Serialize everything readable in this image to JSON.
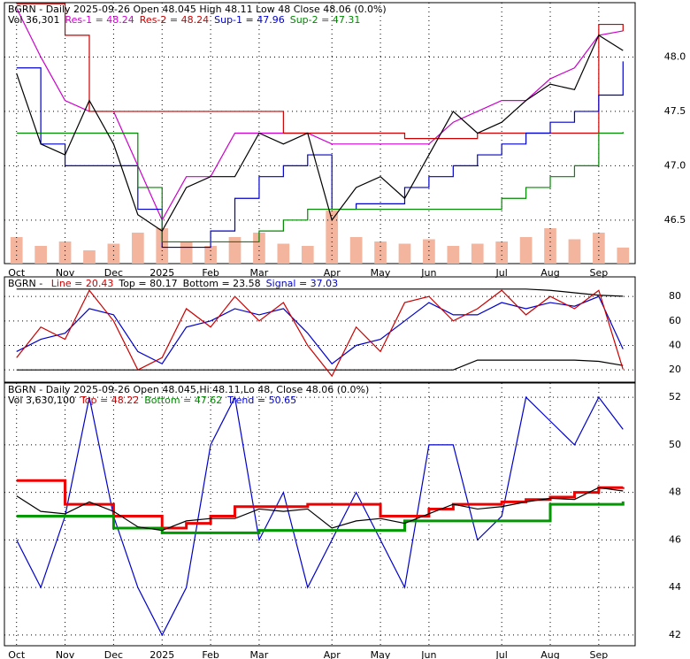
{
  "chart_data": [
    {
      "type": "line",
      "header": [
        [
          {
            "text": "BGRN - Daily 2025-09-26 Open 48.045  High 48.11  Low 48  Close 48.06 (0.0%)",
            "color": "#000000"
          }
        ],
        [
          {
            "text": "Vol 36,301",
            "color": "#000000"
          },
          {
            "text": "Res-1 = 48.24",
            "color": "#cc00cc"
          },
          {
            "text": "Res-2 = 48.24",
            "color": "#cc0000"
          },
          {
            "text": "Sup-1 = 47.96",
            "color": "#0000cc"
          },
          {
            "text": "Sup-2 = 47.31",
            "color": "#008800"
          }
        ]
      ],
      "categories": [
        "Oct",
        null,
        "Nov",
        null,
        "Dec",
        null,
        "2025",
        null,
        "Feb",
        null,
        "Mar",
        null,
        null,
        "Apr",
        null,
        "May",
        null,
        "Jun",
        null,
        null,
        "Jul",
        null,
        "Aug",
        null,
        "Sep",
        null
      ],
      "ylim": [
        46.1,
        48.5
      ],
      "yticks": [
        46.5,
        {
          "value": 47,
          "label": "47.0"
        },
        47.5,
        {
          "value": 48,
          "label": "48.0"
        }
      ],
      "grid": true,
      "volume": {
        "color": "#f4b59e",
        "values": [
          60000,
          40000,
          50000,
          30000,
          45000,
          70000,
          80000,
          50000,
          40000,
          60000,
          70000,
          45000,
          40000,
          120000,
          60000,
          50000,
          45000,
          55000,
          40000,
          45000,
          50000,
          60000,
          80000,
          55000,
          70000,
          36301
        ]
      },
      "series": [
        {
          "color": "#cc00cc",
          "values": [
            48.45,
            48.0,
            47.6,
            47.5,
            47.5,
            47.0,
            46.5,
            46.9,
            46.9,
            47.3,
            47.3,
            47.3,
            47.3,
            47.2,
            47.2,
            47.2,
            47.2,
            47.2,
            47.4,
            47.5,
            47.6,
            47.6,
            47.8,
            47.9,
            48.2,
            48.24
          ]
        },
        {
          "color": "#cc0000",
          "step": true,
          "values": [
            48.49,
            48.49,
            48.2,
            47.5,
            47.5,
            47.5,
            47.5,
            47.5,
            47.5,
            47.5,
            47.5,
            47.3,
            47.3,
            47.3,
            47.3,
            47.3,
            47.25,
            47.25,
            47.25,
            47.3,
            47.3,
            47.3,
            47.3,
            47.3,
            48.3,
            48.24
          ]
        },
        {
          "color": "#0000cc",
          "step": true,
          "values": [
            47.9,
            47.2,
            47.0,
            47.0,
            47.0,
            46.6,
            46.25,
            46.25,
            46.4,
            46.7,
            46.9,
            47.0,
            47.1,
            46.6,
            46.65,
            46.65,
            46.8,
            46.9,
            47.0,
            47.1,
            47.2,
            47.3,
            47.4,
            47.5,
            47.65,
            47.96
          ]
        },
        {
          "color": "#008800",
          "step": true,
          "values": [
            47.3,
            47.3,
            47.3,
            47.3,
            47.3,
            46.8,
            46.3,
            46.3,
            46.3,
            46.3,
            46.4,
            46.5,
            46.6,
            46.6,
            46.6,
            46.6,
            46.6,
            46.6,
            46.6,
            46.6,
            46.7,
            46.8,
            46.9,
            47.0,
            47.3,
            47.31
          ]
        },
        {
          "color": "#000000",
          "values": [
            47.85,
            47.2,
            47.1,
            47.6,
            47.2,
            46.55,
            46.4,
            46.8,
            46.9,
            46.9,
            47.3,
            47.2,
            47.3,
            46.5,
            46.8,
            46.9,
            46.7,
            47.1,
            47.5,
            47.3,
            47.4,
            47.6,
            47.75,
            47.7,
            48.2,
            48.06
          ]
        }
      ]
    },
    {
      "type": "line",
      "header": [
        [
          {
            "text": "BGRN - ",
            "color": "#000000"
          },
          {
            "text": "Line = 20.43",
            "color": "#cc0000"
          },
          {
            "text": "Top = 80.17",
            "color": "#000000"
          },
          {
            "text": "Bottom = 23.58",
            "color": "#000000"
          },
          {
            "text": "Signal = 37.03",
            "color": "#0000cc"
          }
        ]
      ],
      "categories": [
        null,
        null,
        null,
        null,
        null,
        null,
        null,
        null,
        null,
        null,
        null,
        null,
        null,
        null,
        null,
        null,
        null,
        null,
        null,
        null,
        null,
        null,
        null,
        null,
        null,
        null
      ],
      "ylim": [
        10,
        96
      ],
      "yticks": [
        20,
        40,
        60,
        80
      ],
      "grid": true,
      "series": [
        {
          "color": "#000000",
          "values": [
            86,
            86,
            86,
            86,
            86,
            86,
            86,
            86,
            86,
            86,
            86,
            86,
            86,
            86,
            86,
            86,
            86,
            86,
            86,
            86,
            86,
            86,
            85,
            83,
            81,
            80.17
          ]
        },
        {
          "color": "#000000",
          "values": [
            20,
            20,
            20,
            20,
            20,
            20,
            20,
            20,
            20,
            20,
            20,
            20,
            20,
            20,
            20,
            20,
            20,
            20,
            20,
            28,
            28,
            28,
            28,
            28,
            27,
            23.58
          ]
        },
        {
          "color": "#0000cc",
          "values": [
            35,
            45,
            50,
            70,
            65,
            35,
            25,
            55,
            60,
            70,
            65,
            70,
            50,
            25,
            40,
            45,
            60,
            75,
            65,
            65,
            75,
            70,
            75,
            72,
            80,
            37.03
          ]
        },
        {
          "color": "#cc0000",
          "values": [
            30,
            55,
            45,
            85,
            60,
            20,
            30,
            70,
            55,
            80,
            60,
            75,
            40,
            15,
            55,
            35,
            75,
            80,
            60,
            70,
            85,
            65,
            80,
            70,
            85,
            20.43
          ]
        }
      ]
    },
    {
      "type": "line",
      "header": [
        [
          {
            "text": "BGRN - Daily 2025-09-26 Open 48.045,Hi 48.11,Lo 48, Close 48.06 (0.0%)",
            "color": "#000000"
          }
        ],
        [
          {
            "text": "Vol 3,630,100",
            "color": "#000000"
          },
          {
            "text": "Top = 48.22",
            "color": "#cc0000"
          },
          {
            "text": "Bottom = 47.62",
            "color": "#008800"
          },
          {
            "text": "Trend = 50.65",
            "color": "#0000cc"
          }
        ]
      ],
      "categories": [
        "Oct",
        null,
        "Nov",
        null,
        "Dec",
        null,
        "2025",
        null,
        "Feb",
        null,
        "Mar",
        null,
        null,
        "Apr",
        null,
        "May",
        null,
        "Jun",
        null,
        null,
        "Jul",
        null,
        "Aug",
        null,
        "Sep",
        null
      ],
      "ylim": [
        41.55,
        52.6
      ],
      "yticks": [
        42,
        44,
        46,
        48,
        50,
        52
      ],
      "grid": true,
      "series": [
        {
          "color": "#0000cc",
          "values": [
            46,
            44,
            47,
            52,
            47,
            44,
            42,
            44,
            50,
            52,
            46,
            48,
            44,
            46,
            48,
            46,
            44,
            50,
            50,
            46,
            47,
            52,
            51,
            50,
            52,
            50.65
          ]
        },
        {
          "color": "#ee0000",
          "step": true,
          "width": 3,
          "values": [
            48.5,
            48.5,
            47.5,
            47.5,
            47.0,
            47.0,
            46.5,
            46.7,
            47.0,
            47.4,
            47.4,
            47.4,
            47.5,
            47.5,
            47.5,
            47.0,
            47.0,
            47.3,
            47.5,
            47.5,
            47.6,
            47.7,
            47.8,
            48.0,
            48.2,
            48.22
          ]
        },
        {
          "color": "#009900",
          "step": true,
          "width": 3,
          "values": [
            47.0,
            47.0,
            47.0,
            47.0,
            46.5,
            46.5,
            46.3,
            46.3,
            46.3,
            46.3,
            46.4,
            46.4,
            46.4,
            46.4,
            46.4,
            46.4,
            46.8,
            46.8,
            46.8,
            46.8,
            46.8,
            46.8,
            47.5,
            47.5,
            47.5,
            47.62
          ]
        },
        {
          "color": "#000000",
          "values": [
            47.85,
            47.2,
            47.1,
            47.6,
            47.2,
            46.55,
            46.4,
            46.8,
            46.9,
            46.9,
            47.3,
            47.2,
            47.3,
            46.5,
            46.8,
            46.9,
            46.7,
            47.1,
            47.5,
            47.3,
            47.4,
            47.6,
            47.75,
            47.7,
            48.2,
            48.06
          ]
        }
      ]
    }
  ]
}
